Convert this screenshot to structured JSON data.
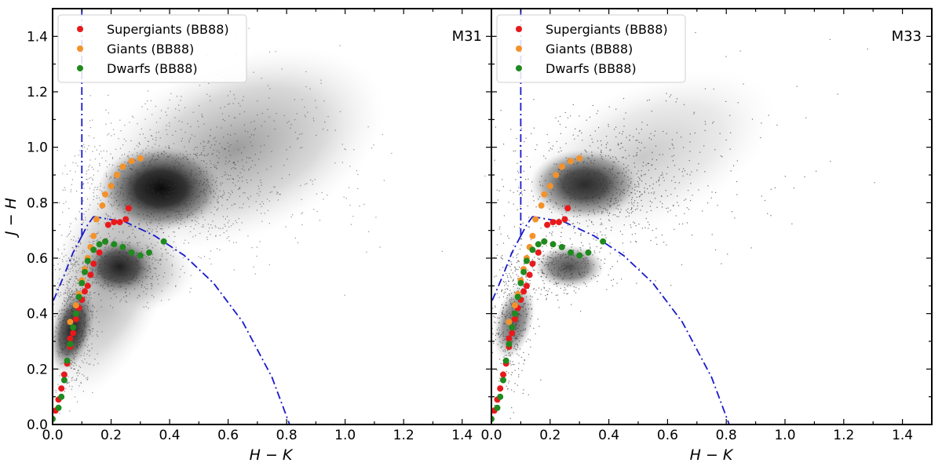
{
  "chart_data": [
    {
      "type": "scatter",
      "panel_label": "M31",
      "xlabel": "H − K",
      "ylabel": "J − H",
      "xlim": [
        0.0,
        1.5
      ],
      "ylim": [
        0.0,
        1.5
      ],
      "xticks": [
        "0.0",
        "0.2",
        "0.4",
        "0.6",
        "0.8",
        "1.0",
        "1.2",
        "1.4"
      ],
      "yticks": [
        "0.0",
        "0.2",
        "0.4",
        "0.6",
        "0.8",
        "1.0",
        "1.2",
        "1.4"
      ],
      "legend_position": "top-left",
      "background": "dense grey point cloud (2MASS sources)",
      "series": [
        {
          "name": "Supergiants (BB88)",
          "color": "#e8191b",
          "points": [
            [
              0.01,
              0.05
            ],
            [
              0.02,
              0.09
            ],
            [
              0.03,
              0.13
            ],
            [
              0.04,
              0.18
            ],
            [
              0.05,
              0.22
            ],
            [
              0.06,
              0.28
            ],
            [
              0.06,
              0.31
            ],
            [
              0.07,
              0.33
            ],
            [
              0.08,
              0.38
            ],
            [
              0.09,
              0.42
            ],
            [
              0.1,
              0.45
            ],
            [
              0.11,
              0.48
            ],
            [
              0.12,
              0.5
            ],
            [
              0.13,
              0.54
            ],
            [
              0.14,
              0.58
            ],
            [
              0.16,
              0.62
            ],
            [
              0.18,
              0.66
            ],
            [
              0.19,
              0.72
            ],
            [
              0.21,
              0.73
            ],
            [
              0.23,
              0.73
            ],
            [
              0.25,
              0.74
            ],
            [
              0.26,
              0.78
            ]
          ]
        },
        {
          "name": "Giants (BB88)",
          "color": "#f3922a",
          "points": [
            [
              0.06,
              0.37
            ],
            [
              0.08,
              0.43
            ],
            [
              0.09,
              0.47
            ],
            [
              0.1,
              0.52
            ],
            [
              0.11,
              0.56
            ],
            [
              0.12,
              0.6
            ],
            [
              0.13,
              0.64
            ],
            [
              0.14,
              0.68
            ],
            [
              0.15,
              0.74
            ],
            [
              0.17,
              0.79
            ],
            [
              0.18,
              0.83
            ],
            [
              0.2,
              0.86
            ],
            [
              0.22,
              0.9
            ],
            [
              0.24,
              0.93
            ],
            [
              0.27,
              0.95
            ],
            [
              0.3,
              0.96
            ]
          ]
        },
        {
          "name": "Dwarfs (BB88)",
          "color": "#1f8a1f",
          "points": [
            [
              0.0,
              0.02
            ],
            [
              0.02,
              0.06
            ],
            [
              0.03,
              0.1
            ],
            [
              0.04,
              0.16
            ],
            [
              0.05,
              0.23
            ],
            [
              0.06,
              0.29
            ],
            [
              0.07,
              0.35
            ],
            [
              0.08,
              0.4
            ],
            [
              0.09,
              0.46
            ],
            [
              0.1,
              0.51
            ],
            [
              0.11,
              0.55
            ],
            [
              0.12,
              0.59
            ],
            [
              0.14,
              0.63
            ],
            [
              0.16,
              0.65
            ],
            [
              0.18,
              0.66
            ],
            [
              0.21,
              0.65
            ],
            [
              0.24,
              0.64
            ],
            [
              0.27,
              0.62
            ],
            [
              0.3,
              0.61
            ],
            [
              0.33,
              0.62
            ],
            [
              0.38,
              0.66
            ]
          ]
        }
      ]
    },
    {
      "type": "scatter",
      "panel_label": "M33",
      "xlabel": "H − K",
      "ylabel": "",
      "xlim": [
        0.0,
        1.5
      ],
      "ylim": [
        0.0,
        1.5
      ],
      "xticks": [
        "0.0",
        "0.2",
        "0.4",
        "0.6",
        "0.8",
        "1.0",
        "1.2",
        "1.4"
      ],
      "yticks": [],
      "legend_position": "top-left",
      "background": "sparser grey point cloud (2MASS sources)",
      "series": [
        {
          "name": "Supergiants (BB88)",
          "color": "#e8191b",
          "points": [
            [
              0.01,
              0.05
            ],
            [
              0.02,
              0.09
            ],
            [
              0.03,
              0.13
            ],
            [
              0.04,
              0.18
            ],
            [
              0.05,
              0.22
            ],
            [
              0.06,
              0.28
            ],
            [
              0.06,
              0.31
            ],
            [
              0.07,
              0.33
            ],
            [
              0.08,
              0.38
            ],
            [
              0.09,
              0.42
            ],
            [
              0.1,
              0.45
            ],
            [
              0.11,
              0.48
            ],
            [
              0.12,
              0.5
            ],
            [
              0.13,
              0.54
            ],
            [
              0.14,
              0.58
            ],
            [
              0.16,
              0.62
            ],
            [
              0.18,
              0.66
            ],
            [
              0.19,
              0.72
            ],
            [
              0.21,
              0.73
            ],
            [
              0.23,
              0.73
            ],
            [
              0.25,
              0.74
            ],
            [
              0.26,
              0.78
            ]
          ]
        },
        {
          "name": "Giants (BB88)",
          "color": "#f3922a",
          "points": [
            [
              0.06,
              0.37
            ],
            [
              0.08,
              0.43
            ],
            [
              0.09,
              0.47
            ],
            [
              0.1,
              0.52
            ],
            [
              0.11,
              0.56
            ],
            [
              0.12,
              0.6
            ],
            [
              0.13,
              0.64
            ],
            [
              0.14,
              0.68
            ],
            [
              0.15,
              0.74
            ],
            [
              0.17,
              0.79
            ],
            [
              0.18,
              0.83
            ],
            [
              0.2,
              0.86
            ],
            [
              0.22,
              0.9
            ],
            [
              0.24,
              0.93
            ],
            [
              0.27,
              0.95
            ],
            [
              0.3,
              0.96
            ]
          ]
        },
        {
          "name": "Dwarfs (BB88)",
          "color": "#1f8a1f",
          "points": [
            [
              0.0,
              0.02
            ],
            [
              0.02,
              0.06
            ],
            [
              0.03,
              0.1
            ],
            [
              0.04,
              0.16
            ],
            [
              0.05,
              0.23
            ],
            [
              0.06,
              0.29
            ],
            [
              0.07,
              0.35
            ],
            [
              0.08,
              0.4
            ],
            [
              0.09,
              0.46
            ],
            [
              0.1,
              0.51
            ],
            [
              0.11,
              0.55
            ],
            [
              0.12,
              0.59
            ],
            [
              0.14,
              0.63
            ],
            [
              0.16,
              0.65
            ],
            [
              0.18,
              0.66
            ],
            [
              0.21,
              0.65
            ],
            [
              0.24,
              0.64
            ],
            [
              0.27,
              0.62
            ],
            [
              0.3,
              0.61
            ],
            [
              0.33,
              0.62
            ],
            [
              0.38,
              0.66
            ]
          ]
        }
      ]
    }
  ],
  "boundaries": {
    "color": "#1a1acc",
    "style": "dash-dot",
    "vertical_line_x": 0.1,
    "upper_curve": [
      [
        0.1,
        0.68
      ],
      [
        0.12,
        0.72
      ],
      [
        0.14,
        0.75
      ]
    ],
    "giant_boundary": [
      [
        0.14,
        0.75
      ],
      [
        0.25,
        0.73
      ],
      [
        0.35,
        0.68
      ],
      [
        0.45,
        0.61
      ],
      [
        0.55,
        0.51
      ],
      [
        0.65,
        0.37
      ],
      [
        0.75,
        0.17
      ],
      [
        0.81,
        0.0
      ]
    ],
    "left_curve": [
      [
        0.1,
        0.68
      ],
      [
        0.07,
        0.62
      ],
      [
        0.04,
        0.54
      ],
      [
        0.0,
        0.44
      ]
    ]
  }
}
